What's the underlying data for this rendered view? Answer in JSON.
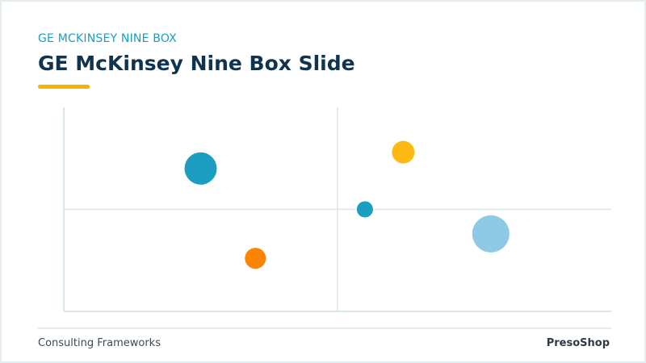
{
  "header": {
    "eyebrow": "GE MCKINSEY NINE BOX",
    "title": "GE McKinsey Nine Box Slide"
  },
  "footer": {
    "left": "Consulting Frameworks",
    "right": "PresoShop"
  },
  "colors": {
    "teal": "#1b9ebf",
    "gold": "#fdb813",
    "orange": "#fb8500",
    "light_blue": "#8ecae6",
    "navy": "#0f3450",
    "accent": "#f4b400",
    "axis": "#d9e6ec"
  },
  "chart_data": {
    "type": "scatter",
    "xlim": [
      0,
      1
    ],
    "ylim": [
      0,
      1
    ],
    "dividers": {
      "x": 0.5,
      "y": 0.5
    },
    "grid": false,
    "points": [
      {
        "x": 0.25,
        "y": 0.7,
        "size": 20,
        "color": "#1b9ebf"
      },
      {
        "x": 0.62,
        "y": 0.78,
        "size": 14,
        "color": "#fdb813"
      },
      {
        "x": 0.55,
        "y": 0.5,
        "size": 10,
        "color": "#1b9ebf"
      },
      {
        "x": 0.78,
        "y": 0.38,
        "size": 23,
        "color": "#8ecae6"
      },
      {
        "x": 0.35,
        "y": 0.26,
        "size": 13,
        "color": "#fb8500"
      }
    ]
  }
}
